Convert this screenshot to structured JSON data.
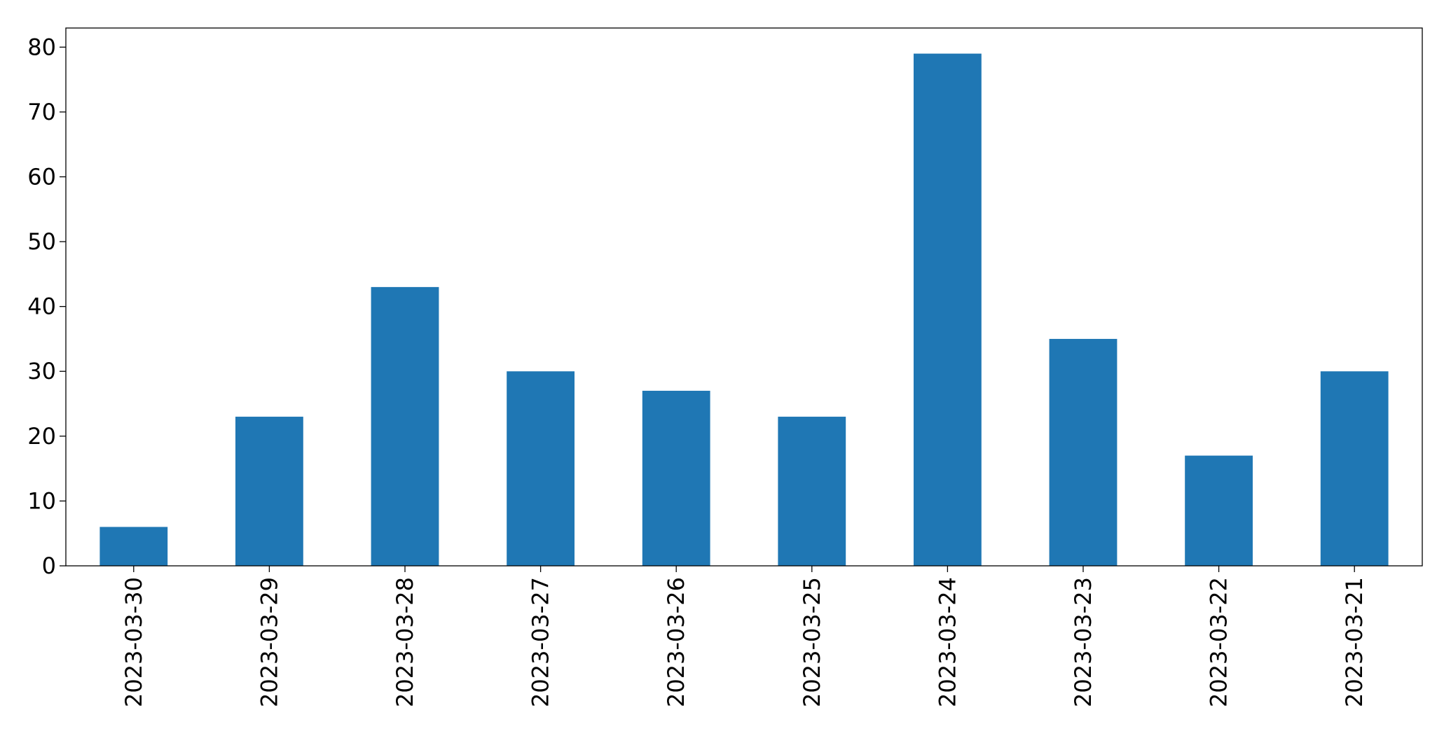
{
  "chart_data": {
    "type": "bar",
    "categories": [
      "2023-03-30",
      "2023-03-29",
      "2023-03-28",
      "2023-03-27",
      "2023-03-26",
      "2023-03-25",
      "2023-03-24",
      "2023-03-23",
      "2023-03-22",
      "2023-03-21"
    ],
    "values": [
      6,
      23,
      43,
      30,
      27,
      23,
      79,
      35,
      17,
      30
    ],
    "color": "#1f77b4",
    "ylim": [
      0,
      82.95
    ],
    "yticks": [
      0,
      10,
      20,
      30,
      40,
      50,
      60,
      70,
      80
    ],
    "grid": false
  }
}
